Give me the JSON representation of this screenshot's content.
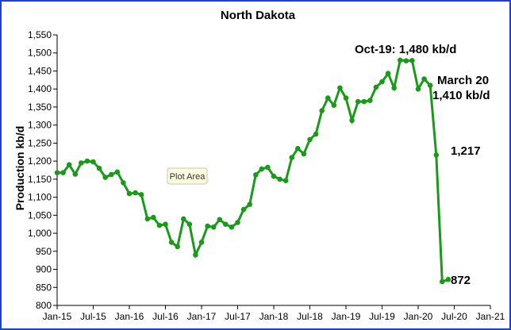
{
  "chart_data": {
    "type": "line",
    "title": "North Dakota",
    "xlabel": "",
    "ylabel": "Production kb/d",
    "ylim": [
      800,
      1550
    ],
    "yticks": [
      800,
      850,
      900,
      950,
      1000,
      1050,
      1100,
      1150,
      1200,
      1250,
      1300,
      1350,
      1400,
      1450,
      1500,
      1550
    ],
    "ytick_labels": [
      "800",
      "850",
      "900",
      "950",
      "1,000",
      "1,050",
      "1,100",
      "1,150",
      "1,200",
      "1,250",
      "1,300",
      "1,350",
      "1,400",
      "1,450",
      "1,500",
      "1,550"
    ],
    "xtick_labels": [
      "Jan-15",
      "Jul-15",
      "Jan-16",
      "Jul-16",
      "Jan-17",
      "Jul-17",
      "Jan-18",
      "Jul-18",
      "Jan-19",
      "Jul-19",
      "Jan-20",
      "Jul-20",
      "Jan-21"
    ],
    "grid": false,
    "legend": "none",
    "line_color": "#1a9a1a",
    "series": [
      {
        "x": [
          "2015-01",
          "2015-02",
          "2015-03",
          "2015-04",
          "2015-05",
          "2015-06",
          "2015-07",
          "2015-08",
          "2015-09",
          "2015-10",
          "2015-11",
          "2015-12",
          "2016-01",
          "2016-02",
          "2016-03",
          "2016-04",
          "2016-05",
          "2016-06",
          "2016-07",
          "2016-08",
          "2016-09",
          "2016-10",
          "2016-11",
          "2016-12",
          "2017-01",
          "2017-02",
          "2017-03",
          "2017-04",
          "2017-05",
          "2017-06",
          "2017-07",
          "2017-08",
          "2017-09",
          "2017-10",
          "2017-11",
          "2017-12",
          "2018-01",
          "2018-02",
          "2018-03",
          "2018-04",
          "2018-05",
          "2018-06",
          "2018-07",
          "2018-08",
          "2018-09",
          "2018-10",
          "2018-11",
          "2018-12",
          "2019-01",
          "2019-02",
          "2019-03",
          "2019-04",
          "2019-05",
          "2019-06",
          "2019-07",
          "2019-08",
          "2019-09",
          "2019-10",
          "2019-11",
          "2019-12",
          "2020-01",
          "2020-02",
          "2020-03",
          "2020-04",
          "2020-05",
          "2020-06"
        ],
        "values": [
          1168,
          1168,
          1190,
          1164,
          1195,
          1200,
          1198,
          1180,
          1155,
          1163,
          1170,
          1140,
          1110,
          1112,
          1107,
          1040,
          1044,
          1022,
          1025,
          975,
          963,
          1040,
          1025,
          940,
          975,
          1020,
          1017,
          1038,
          1025,
          1017,
          1030,
          1066,
          1080,
          1162,
          1178,
          1183,
          1158,
          1150,
          1146,
          1210,
          1235,
          1220,
          1260,
          1275,
          1340,
          1375,
          1355,
          1403,
          1375,
          1313,
          1365,
          1365,
          1368,
          1405,
          1420,
          1443,
          1403,
          1480,
          1478,
          1479,
          1400,
          1428,
          1410,
          1217,
          866,
          872
        ]
      }
    ],
    "annotations": [
      {
        "text": "Oct-19: 1,480 kb/d"
      },
      {
        "text": "March 20"
      },
      {
        "text": "1,410 kb/d"
      },
      {
        "text": "1,217"
      },
      {
        "text": "872"
      }
    ],
    "tooltip": "Plot Area"
  }
}
